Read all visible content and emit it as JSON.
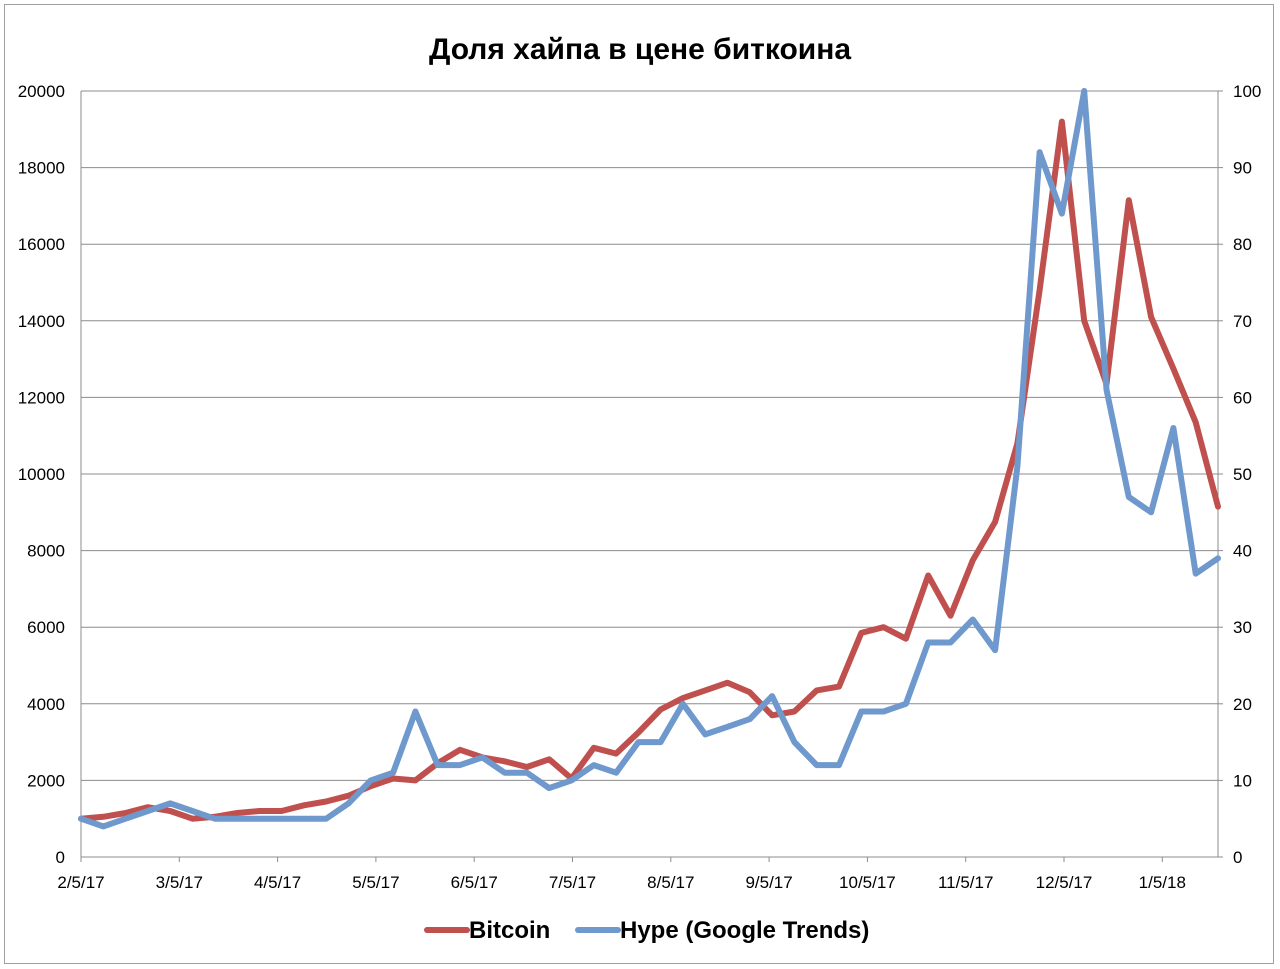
{
  "chart_data": {
    "type": "line",
    "title": "Доля хайпа в цене биткоина",
    "legend_position": "bottom",
    "grid": true,
    "x_tick_labels": [
      "2/5/17",
      "3/5/17",
      "4/5/17",
      "5/5/17",
      "6/5/17",
      "7/5/17",
      "8/5/17",
      "9/5/17",
      "10/5/17",
      "11/5/17",
      "12/5/17",
      "1/5/18"
    ],
    "y_left": {
      "min": 0,
      "max": 20000,
      "ticks": [
        "0",
        "2000",
        "4000",
        "6000",
        "8000",
        "10000",
        "12000",
        "14000",
        "16000",
        "18000",
        "20000"
      ]
    },
    "y_right": {
      "min": 0,
      "max": 100,
      "ticks": [
        "0",
        "10",
        "20",
        "30",
        "40",
        "50",
        "60",
        "70",
        "80",
        "90",
        "100"
      ]
    },
    "series": [
      {
        "name": "Bitcoin",
        "axis": "left",
        "color": "#c0504d",
        "values": [
          1000,
          1050,
          1150,
          1300,
          1200,
          1000,
          1050,
          1150,
          1200,
          1200,
          1350,
          1450,
          1600,
          1850,
          2050,
          2000,
          2450,
          2800,
          2600,
          2500,
          2350,
          2550,
          2050,
          2850,
          2700,
          3250,
          3850,
          4150,
          4350,
          4550,
          4300,
          3700,
          3800,
          4350,
          4450,
          5850,
          6000,
          5700,
          7350,
          6300,
          7750,
          8750,
          10800,
          14800,
          19200,
          14000,
          12350,
          17150,
          14100,
          12750,
          11350,
          9150
        ]
      },
      {
        "name": "Hype (Google Trends)",
        "axis": "right",
        "color": "#6f98cd",
        "values": [
          5,
          4,
          5,
          6,
          7,
          6,
          5,
          5,
          5,
          5,
          5,
          5,
          7,
          10,
          11,
          19,
          12,
          12,
          13,
          11,
          11,
          9,
          10,
          12,
          11,
          15,
          15,
          20,
          16,
          17,
          18,
          21,
          15,
          12,
          12,
          19,
          19,
          20,
          28,
          28,
          31,
          27,
          51,
          92,
          84,
          100,
          61,
          47,
          45,
          56,
          37,
          39
        ]
      }
    ]
  }
}
